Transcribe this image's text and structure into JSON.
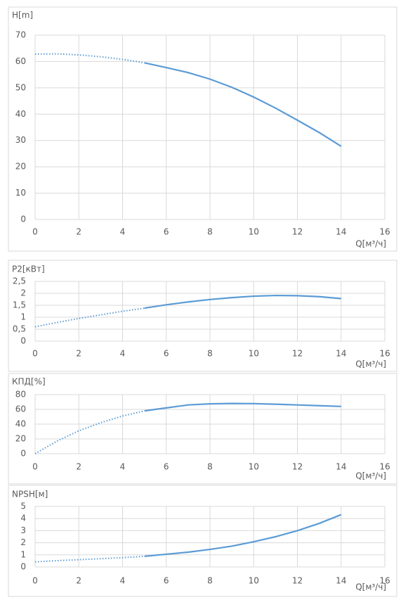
{
  "chart_data": [
    {
      "type": "line",
      "y_label": "H[m]",
      "x_label": "Q[м³/ч]",
      "xlim": [
        0,
        16
      ],
      "xticks": [
        0,
        2,
        4,
        6,
        8,
        10,
        12,
        14,
        16
      ],
      "ylim": [
        0,
        70
      ],
      "yticks": [
        0,
        10,
        20,
        30,
        40,
        50,
        60,
        70
      ],
      "grid": true,
      "series": [
        {
          "color": "#5b9bd5",
          "style": "dotted",
          "x": [
            0,
            1,
            2,
            3,
            4,
            5
          ],
          "values": [
            62.8,
            62.9,
            62.5,
            61.8,
            60.8,
            59.5
          ]
        },
        {
          "color": "#5b9bd5",
          "style": "solid",
          "x": [
            5,
            6,
            7,
            8,
            9,
            10,
            11,
            12,
            13,
            14
          ],
          "values": [
            59.5,
            57.7,
            55.8,
            53.3,
            50.2,
            46.5,
            42.3,
            37.7,
            33,
            27.8
          ]
        }
      ]
    },
    {
      "type": "line",
      "y_label": "P2[кВт]",
      "x_label": "Q[м³/ч]",
      "xlim": [
        0,
        16
      ],
      "xticks": [
        0,
        2,
        4,
        6,
        8,
        10,
        12,
        14,
        16
      ],
      "ylim": [
        0,
        2.5
      ],
      "yticks": [
        0,
        {
          "value": 0.5,
          "label": "0,5"
        },
        1,
        {
          "value": 1.5,
          "label": "1,5"
        },
        2,
        {
          "value": 2.5,
          "label": "2,5"
        }
      ],
      "grid": true,
      "series": [
        {
          "color": "#5b9bd5",
          "style": "dotted",
          "x": [
            0,
            1,
            2,
            3,
            4,
            5
          ],
          "values": [
            0.6,
            0.78,
            0.95,
            1.1,
            1.25,
            1.38
          ]
        },
        {
          "color": "#5b9bd5",
          "style": "solid",
          "x": [
            5,
            6,
            7,
            8,
            9,
            10,
            11,
            12,
            13,
            14
          ],
          "values": [
            1.38,
            1.52,
            1.64,
            1.74,
            1.82,
            1.88,
            1.91,
            1.9,
            1.86,
            1.78
          ]
        }
      ]
    },
    {
      "type": "line",
      "y_label": "КПД[%]",
      "x_label": "Q[м³/ч]",
      "xlim": [
        0,
        16
      ],
      "xticks": [
        0,
        2,
        4,
        6,
        8,
        10,
        12,
        14,
        16
      ],
      "ylim": [
        0,
        80
      ],
      "yticks": [
        0,
        20,
        40,
        60,
        80
      ],
      "grid": true,
      "series": [
        {
          "color": "#5b9bd5",
          "style": "dotted",
          "x": [
            0,
            1,
            2,
            3,
            4,
            5
          ],
          "values": [
            0,
            17,
            31,
            42,
            51,
            58
          ]
        },
        {
          "color": "#5b9bd5",
          "style": "solid",
          "x": [
            5,
            6,
            7,
            8,
            9,
            10,
            11,
            12,
            13,
            14
          ],
          "values": [
            58,
            62,
            66,
            67.5,
            68,
            67.8,
            67,
            66,
            65,
            64
          ]
        }
      ]
    },
    {
      "type": "line",
      "y_label": "NPSH[м]",
      "x_label": "Q[м³/ч]",
      "xlim": [
        0,
        16
      ],
      "xticks": [
        0,
        2,
        4,
        6,
        8,
        10,
        12,
        14,
        16
      ],
      "ylim": [
        0,
        5
      ],
      "yticks": [
        0,
        1,
        2,
        3,
        4,
        5
      ],
      "grid": true,
      "series": [
        {
          "color": "#5b9bd5",
          "style": "dotted",
          "x": [
            0,
            1,
            2,
            3,
            4,
            5
          ],
          "values": [
            0.42,
            0.52,
            0.6,
            0.68,
            0.77,
            0.88
          ]
        },
        {
          "color": "#5b9bd5",
          "style": "solid",
          "x": [
            5,
            6,
            7,
            8,
            9,
            10,
            11,
            12,
            13,
            14
          ],
          "values": [
            0.88,
            1.05,
            1.22,
            1.45,
            1.72,
            2.08,
            2.5,
            3.0,
            3.6,
            4.32
          ]
        }
      ]
    }
  ]
}
